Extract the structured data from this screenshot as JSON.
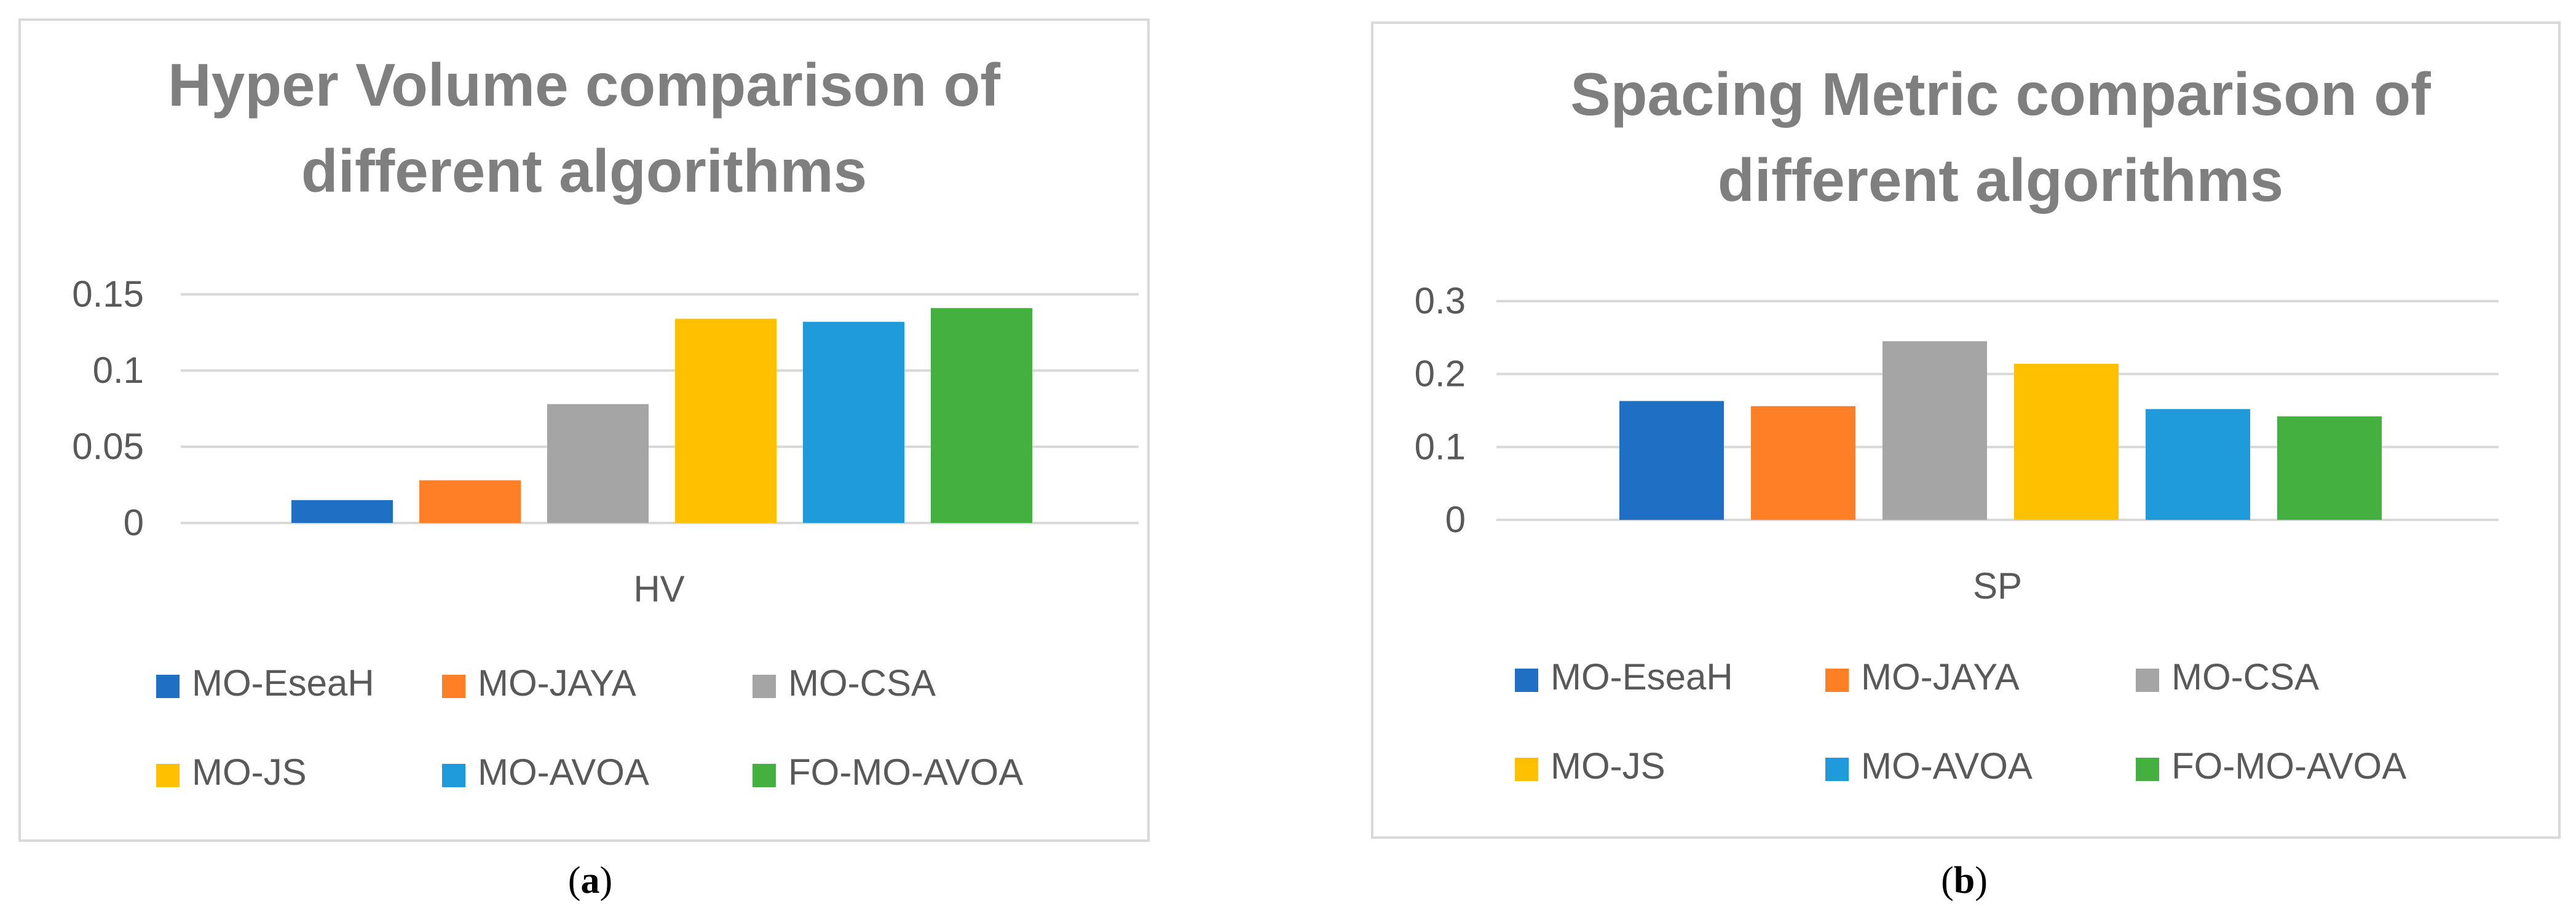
{
  "figure": {
    "label_a": "a",
    "label_b": "b"
  },
  "legend_colors": {
    "MO-EseaH": "#1f6fc5",
    "MO-JAYA": "#ff7f27",
    "MO-CSA": "#a5a5a5",
    "MO-JS": "#ffc000",
    "MO-AVOA": "#1f9bdb",
    "FO-MO-AVOA": "#43b03f"
  },
  "chart_data": [
    {
      "type": "bar",
      "title": "Hyper Volume comparison of different algorithms",
      "title_lines": [
        "Hyper Volume comparison of",
        "different algorithms"
      ],
      "categories": [
        "HV"
      ],
      "series": [
        {
          "name": "MO-EseaH",
          "values": [
            0.015
          ]
        },
        {
          "name": "MO-JAYA",
          "values": [
            0.028
          ]
        },
        {
          "name": "MO-CSA",
          "values": [
            0.078
          ]
        },
        {
          "name": "MO-JS",
          "values": [
            0.134
          ]
        },
        {
          "name": "MO-AVOA",
          "values": [
            0.132
          ]
        },
        {
          "name": "FO-MO-AVOA",
          "values": [
            0.141
          ]
        }
      ],
      "ylim": [
        0,
        0.15
      ],
      "yticks": [
        "0",
        "0.05",
        "0.1",
        "0.15"
      ],
      "ytick_values": [
        0,
        0.05,
        0.1,
        0.15
      ],
      "grid": true,
      "legend": "bottom"
    },
    {
      "type": "bar",
      "title": "Spacing Metric comparison of different algorithms",
      "title_lines": [
        "Spacing Metric comparison of",
        "different algorithms"
      ],
      "categories": [
        "SP"
      ],
      "series": [
        {
          "name": "MO-EseaH",
          "values": [
            0.163
          ]
        },
        {
          "name": "MO-JAYA",
          "values": [
            0.156
          ]
        },
        {
          "name": "MO-CSA",
          "values": [
            0.245
          ]
        },
        {
          "name": "MO-JS",
          "values": [
            0.214
          ]
        },
        {
          "name": "MO-AVOA",
          "values": [
            0.152
          ]
        },
        {
          "name": "FO-MO-AVOA",
          "values": [
            0.142
          ]
        }
      ],
      "ylim": [
        0,
        0.3
      ],
      "yticks": [
        "0",
        "0.1",
        "0.2",
        "0.3"
      ],
      "ytick_values": [
        0,
        0.1,
        0.2,
        0.3
      ],
      "grid": true,
      "legend": "bottom"
    }
  ]
}
